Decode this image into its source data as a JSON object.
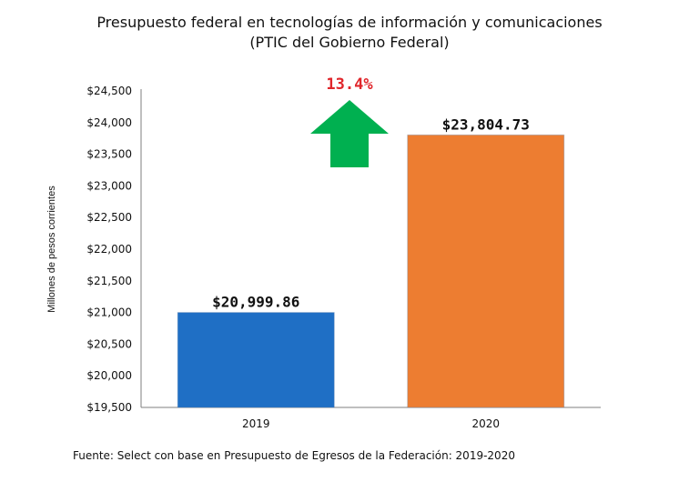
{
  "chart_data": {
    "type": "bar",
    "title": "Presupuesto federal en tecnologías de información y comunicaciones",
    "subtitle": "(PTIC del Gobierno Federal)",
    "ylabel": "Millones de pesos corrientes",
    "xlabel": "",
    "categories": [
      "2019",
      "2020"
    ],
    "values": [
      20999.86,
      23804.73
    ],
    "value_labels": [
      "$20,999.86",
      "$23,804.73"
    ],
    "bar_colors": [
      "#1f6fc5",
      "#ed7d31"
    ],
    "ylim": [
      19500,
      24500
    ],
    "yticks": [
      19500,
      20000,
      20500,
      21000,
      21500,
      22000,
      22500,
      23000,
      23500,
      24000,
      24500
    ],
    "ytick_labels": [
      "$19,500",
      "$20,000",
      "$20,500",
      "$21,000",
      "$21,500",
      "$22,000",
      "$22,500",
      "$23,000",
      "$23,500",
      "$24,000",
      "$24,500"
    ],
    "growth_annotation": "13.4%",
    "growth_color": "#e0262b",
    "arrow_color": "#00b050",
    "grid": false,
    "legend": "none"
  },
  "source_note": "Fuente: Select con base en Presupuesto de Egresos de la Federación: 2019-2020"
}
